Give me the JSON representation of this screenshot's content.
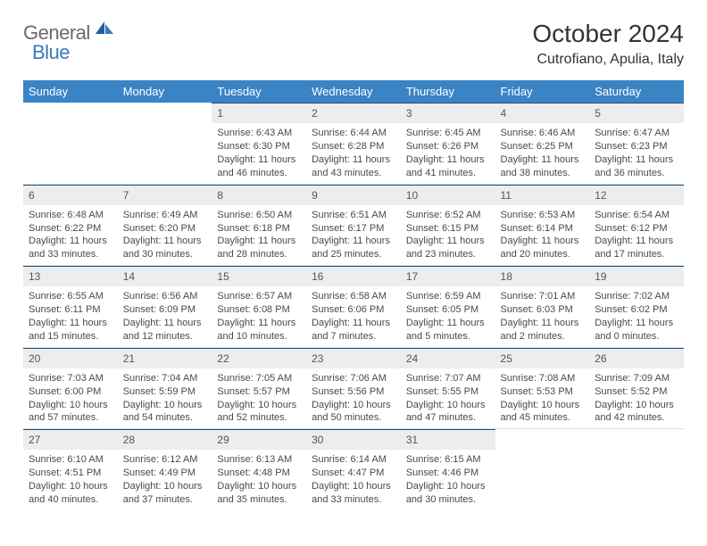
{
  "brand": {
    "text_general": "General",
    "text_blue": "Blue",
    "gray_color": "#6a6a6a",
    "blue_color": "#3a7ab8",
    "sail_color": "#1e5f9e"
  },
  "title": "October 2024",
  "location": "Cutrofiano, Apulia, Italy",
  "colors": {
    "header_bg": "#3a84c4",
    "header_fg": "#ffffff",
    "daynum_bg": "#ecedee",
    "daynum_border_top": "#1e4f80",
    "cell_border": "#e0e0e0",
    "text": "#4a4a4a"
  },
  "weekdays": [
    "Sunday",
    "Monday",
    "Tuesday",
    "Wednesday",
    "Thursday",
    "Friday",
    "Saturday"
  ],
  "weeks": [
    [
      {
        "n": "",
        "sunrise": "",
        "sunset": "",
        "daylight": ""
      },
      {
        "n": "",
        "sunrise": "",
        "sunset": "",
        "daylight": ""
      },
      {
        "n": "1",
        "sunrise": "6:43 AM",
        "sunset": "6:30 PM",
        "daylight": "11 hours and 46 minutes."
      },
      {
        "n": "2",
        "sunrise": "6:44 AM",
        "sunset": "6:28 PM",
        "daylight": "11 hours and 43 minutes."
      },
      {
        "n": "3",
        "sunrise": "6:45 AM",
        "sunset": "6:26 PM",
        "daylight": "11 hours and 41 minutes."
      },
      {
        "n": "4",
        "sunrise": "6:46 AM",
        "sunset": "6:25 PM",
        "daylight": "11 hours and 38 minutes."
      },
      {
        "n": "5",
        "sunrise": "6:47 AM",
        "sunset": "6:23 PM",
        "daylight": "11 hours and 36 minutes."
      }
    ],
    [
      {
        "n": "6",
        "sunrise": "6:48 AM",
        "sunset": "6:22 PM",
        "daylight": "11 hours and 33 minutes."
      },
      {
        "n": "7",
        "sunrise": "6:49 AM",
        "sunset": "6:20 PM",
        "daylight": "11 hours and 30 minutes."
      },
      {
        "n": "8",
        "sunrise": "6:50 AM",
        "sunset": "6:18 PM",
        "daylight": "11 hours and 28 minutes."
      },
      {
        "n": "9",
        "sunrise": "6:51 AM",
        "sunset": "6:17 PM",
        "daylight": "11 hours and 25 minutes."
      },
      {
        "n": "10",
        "sunrise": "6:52 AM",
        "sunset": "6:15 PM",
        "daylight": "11 hours and 23 minutes."
      },
      {
        "n": "11",
        "sunrise": "6:53 AM",
        "sunset": "6:14 PM",
        "daylight": "11 hours and 20 minutes."
      },
      {
        "n": "12",
        "sunrise": "6:54 AM",
        "sunset": "6:12 PM",
        "daylight": "11 hours and 17 minutes."
      }
    ],
    [
      {
        "n": "13",
        "sunrise": "6:55 AM",
        "sunset": "6:11 PM",
        "daylight": "11 hours and 15 minutes."
      },
      {
        "n": "14",
        "sunrise": "6:56 AM",
        "sunset": "6:09 PM",
        "daylight": "11 hours and 12 minutes."
      },
      {
        "n": "15",
        "sunrise": "6:57 AM",
        "sunset": "6:08 PM",
        "daylight": "11 hours and 10 minutes."
      },
      {
        "n": "16",
        "sunrise": "6:58 AM",
        "sunset": "6:06 PM",
        "daylight": "11 hours and 7 minutes."
      },
      {
        "n": "17",
        "sunrise": "6:59 AM",
        "sunset": "6:05 PM",
        "daylight": "11 hours and 5 minutes."
      },
      {
        "n": "18",
        "sunrise": "7:01 AM",
        "sunset": "6:03 PM",
        "daylight": "11 hours and 2 minutes."
      },
      {
        "n": "19",
        "sunrise": "7:02 AM",
        "sunset": "6:02 PM",
        "daylight": "11 hours and 0 minutes."
      }
    ],
    [
      {
        "n": "20",
        "sunrise": "7:03 AM",
        "sunset": "6:00 PM",
        "daylight": "10 hours and 57 minutes."
      },
      {
        "n": "21",
        "sunrise": "7:04 AM",
        "sunset": "5:59 PM",
        "daylight": "10 hours and 54 minutes."
      },
      {
        "n": "22",
        "sunrise": "7:05 AM",
        "sunset": "5:57 PM",
        "daylight": "10 hours and 52 minutes."
      },
      {
        "n": "23",
        "sunrise": "7:06 AM",
        "sunset": "5:56 PM",
        "daylight": "10 hours and 50 minutes."
      },
      {
        "n": "24",
        "sunrise": "7:07 AM",
        "sunset": "5:55 PM",
        "daylight": "10 hours and 47 minutes."
      },
      {
        "n": "25",
        "sunrise": "7:08 AM",
        "sunset": "5:53 PM",
        "daylight": "10 hours and 45 minutes."
      },
      {
        "n": "26",
        "sunrise": "7:09 AM",
        "sunset": "5:52 PM",
        "daylight": "10 hours and 42 minutes."
      }
    ],
    [
      {
        "n": "27",
        "sunrise": "6:10 AM",
        "sunset": "4:51 PM",
        "daylight": "10 hours and 40 minutes."
      },
      {
        "n": "28",
        "sunrise": "6:12 AM",
        "sunset": "4:49 PM",
        "daylight": "10 hours and 37 minutes."
      },
      {
        "n": "29",
        "sunrise": "6:13 AM",
        "sunset": "4:48 PM",
        "daylight": "10 hours and 35 minutes."
      },
      {
        "n": "30",
        "sunrise": "6:14 AM",
        "sunset": "4:47 PM",
        "daylight": "10 hours and 33 minutes."
      },
      {
        "n": "31",
        "sunrise": "6:15 AM",
        "sunset": "4:46 PM",
        "daylight": "10 hours and 30 minutes."
      },
      {
        "n": "",
        "sunrise": "",
        "sunset": "",
        "daylight": ""
      },
      {
        "n": "",
        "sunrise": "",
        "sunset": "",
        "daylight": ""
      }
    ]
  ],
  "labels": {
    "sunrise": "Sunrise:",
    "sunset": "Sunset:",
    "daylight": "Daylight:"
  }
}
